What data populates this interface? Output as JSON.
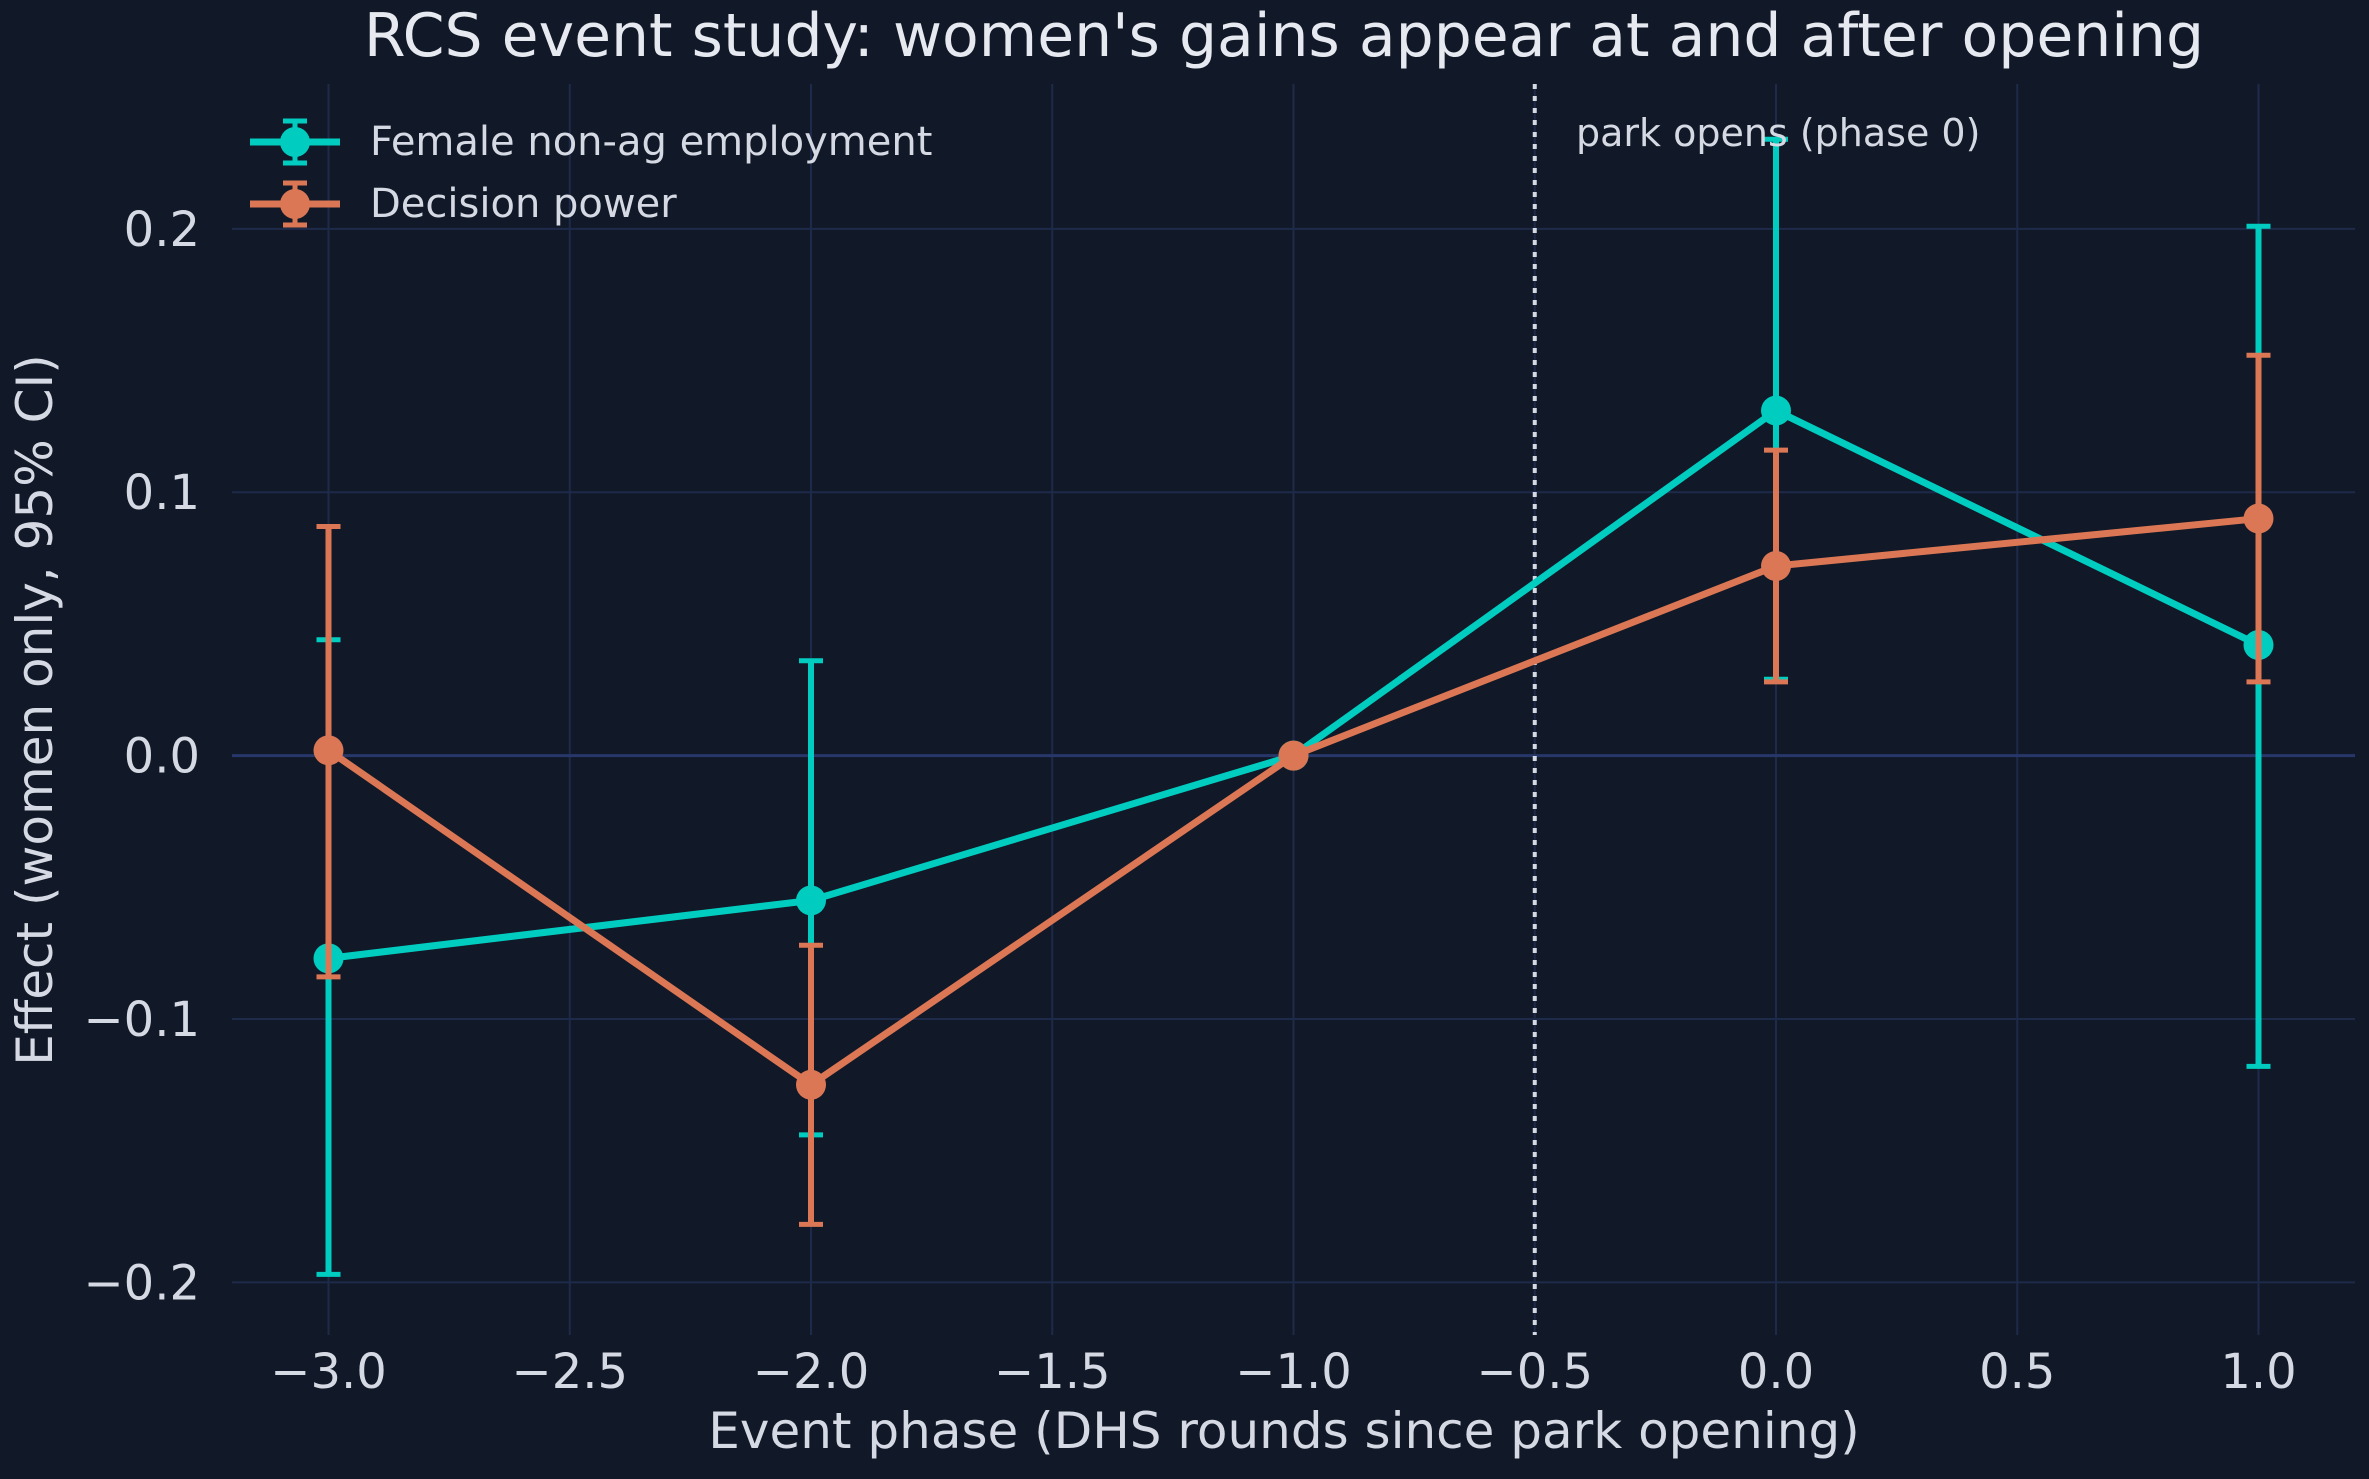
{
  "chart_data": {
    "type": "line",
    "title": "RCS event study: women's gains appear at and after opening",
    "xlabel": "Event phase (DHS rounds since park opening)",
    "ylabel": "Effect (women only, 95% CI)",
    "xlim": [
      -3.2,
      1.2
    ],
    "ylim": [
      -0.22,
      0.255
    ],
    "xticks": [
      -3.0,
      -2.5,
      -2.0,
      -1.5,
      -1.0,
      -0.5,
      0.0,
      0.5,
      1.0
    ],
    "xtick_labels": [
      "−3.0",
      "−2.5",
      "−2.0",
      "−1.5",
      "−1.0",
      "−0.5",
      "0.0",
      "0.5",
      "1.0"
    ],
    "yticks": [
      -0.2,
      -0.1,
      0.0,
      0.1,
      0.2
    ],
    "ytick_labels": [
      "−0.2",
      "−0.1",
      "0.0",
      "0.1",
      "0.2"
    ],
    "grid": true,
    "legend_position": "upper-left",
    "zero_line": 0.0,
    "event_line": {
      "x": -0.5,
      "label": "park opens (phase 0)"
    },
    "series": [
      {
        "name": "Female non-ag employment",
        "color": "#00cdc0",
        "x": [
          -3,
          -2,
          -1,
          0,
          1
        ],
        "y": [
          -0.077,
          -0.055,
          0.0,
          0.131,
          0.042
        ],
        "ci_low": [
          -0.197,
          -0.144,
          null,
          0.029,
          -0.118
        ],
        "ci_high": [
          0.044,
          0.036,
          null,
          0.234,
          0.201
        ]
      },
      {
        "name": "Decision power",
        "color": "#db7754",
        "x": [
          -3,
          -2,
          -1,
          0,
          1
        ],
        "y": [
          0.002,
          -0.125,
          0.0,
          0.072,
          0.09
        ],
        "ci_low": [
          -0.084,
          -0.178,
          null,
          0.028,
          0.028
        ],
        "ci_high": [
          0.087,
          -0.072,
          null,
          0.116,
          0.152
        ]
      }
    ],
    "colors": {
      "background": "#111827",
      "grid": "#1e2a4a",
      "zero_line": "#27376a",
      "text": "#d5d9e3",
      "event_line": "#d5d9e3"
    }
  }
}
